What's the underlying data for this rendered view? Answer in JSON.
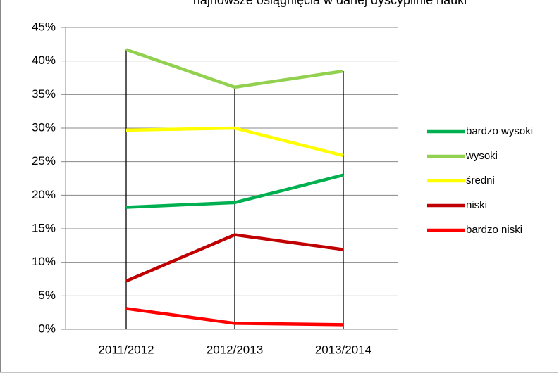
{
  "chart_data": {
    "type": "line",
    "title": "najnowsze osiągnięcia w danej dyscyplinie nauki",
    "categories": [
      "2011/2012",
      "2012/2013",
      "2013/2014"
    ],
    "series": [
      {
        "name": "bardzo wysoki",
        "color": "#00b050",
        "values": [
          18.2,
          18.9,
          23.0
        ]
      },
      {
        "name": "wysoki",
        "color": "#92d050",
        "values": [
          41.7,
          36.1,
          38.5
        ]
      },
      {
        "name": "średni",
        "color": "#ffff00",
        "values": [
          29.7,
          30.0,
          25.9
        ]
      },
      {
        "name": "niski",
        "color": "#c00000",
        "values": [
          7.2,
          14.1,
          11.9
        ]
      },
      {
        "name": "bardzo niski",
        "color": "#ff0000",
        "values": [
          3.1,
          0.9,
          0.7
        ]
      }
    ],
    "ylim": [
      0,
      45
    ],
    "yticks": [
      {
        "value": 0,
        "label": "0%"
      },
      {
        "value": 5,
        "label": "5%"
      },
      {
        "value": 10,
        "label": "10%"
      },
      {
        "value": 15,
        "label": "15%"
      },
      {
        "value": 20,
        "label": "20%"
      },
      {
        "value": 25,
        "label": "25%"
      },
      {
        "value": 30,
        "label": "30%"
      },
      {
        "value": 35,
        "label": "35%"
      },
      {
        "value": 40,
        "label": "40%"
      },
      {
        "value": 45,
        "label": "45%"
      }
    ],
    "grid": true,
    "legend": "right"
  }
}
